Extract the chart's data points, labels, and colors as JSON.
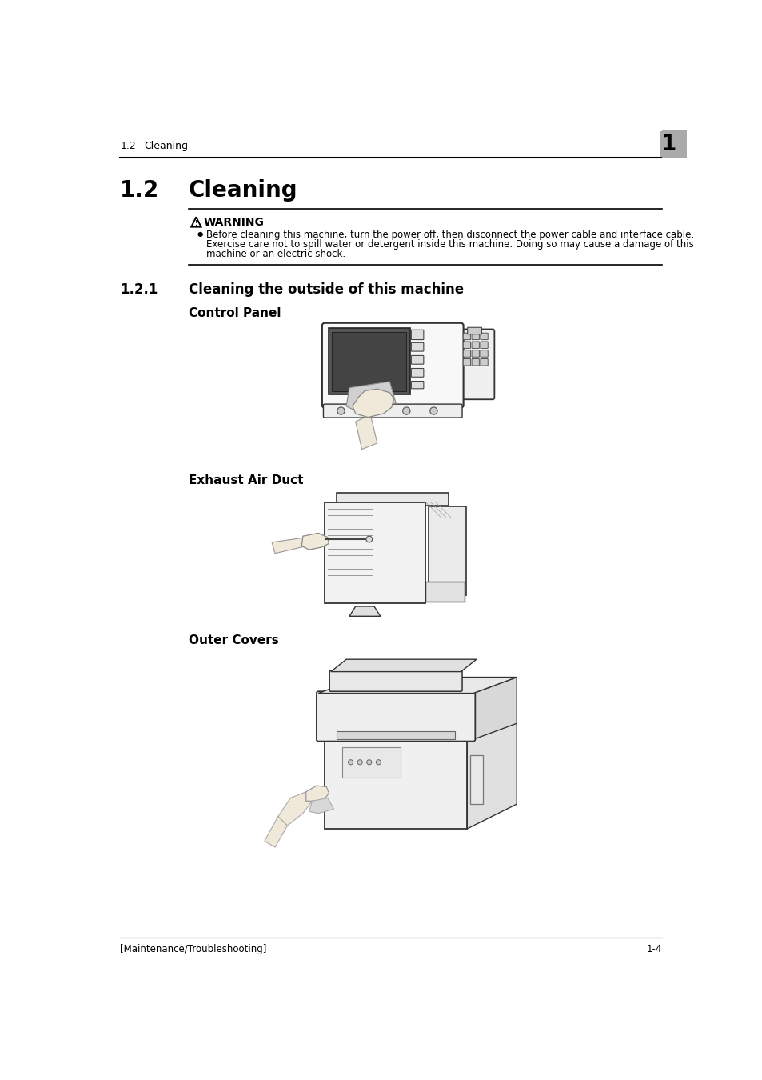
{
  "page_bg": "#ffffff",
  "header_section_num": "1.2",
  "header_section_title": "Cleaning",
  "header_page_num": "1",
  "section_num": "1.2",
  "section_title": "Cleaning",
  "warning_title": "WARNING",
  "warning_line1": "Before cleaning this machine, turn the power off, then disconnect the power cable and interface cable.",
  "warning_line2": "Exercise care not to spill water or detergent inside this machine. Doing so may cause a damage of this",
  "warning_line3": "machine or an electric shock.",
  "subsection_num": "1.2.1",
  "subsection_title": "Cleaning the outside of this machine",
  "control_panel_label": "Control Panel",
  "exhaust_air_label": "Exhaust Air Duct",
  "outer_covers_label": "Outer Covers",
  "footer_left": "[Maintenance/Troubleshooting]",
  "footer_right": "1-4",
  "lm": 0.042,
  "cl": 0.158,
  "rm": 0.958,
  "gray_box_color": "#aaaaaa",
  "line_color": "#000000",
  "text_color": "#000000",
  "img_line_color": "#333333",
  "img_bg": "#ffffff"
}
